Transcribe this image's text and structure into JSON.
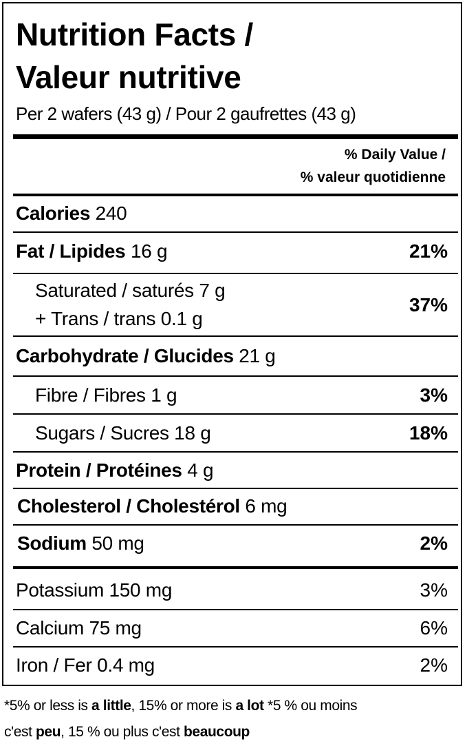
{
  "header": {
    "title_en": "Nutrition Facts /",
    "title_fr": "Valeur nutritive",
    "serving": "Per 2 wafers (43 g) / Pour 2 gaufrettes (43 g)"
  },
  "dv_header": {
    "line1": "% Daily Value /",
    "line2": "% valeur quotidienne"
  },
  "rows": {
    "calories": {
      "name": "Calories",
      "amount": "240"
    },
    "fat": {
      "name": "Fat / Lipides",
      "amount": "16 g",
      "dv": "21%"
    },
    "saturated": {
      "name": "Saturated / saturés 7 g"
    },
    "trans": {
      "name": "+ Trans / trans 0.1 g",
      "dv": "37%"
    },
    "carbohydrate": {
      "name": "Carbohydrate / Glucides",
      "amount": "21 g"
    },
    "fibre": {
      "name": "Fibre / Fibres 1 g",
      "dv": "3%"
    },
    "sugars": {
      "name": "Sugars / Sucres 18 g",
      "dv": "18%"
    },
    "protein": {
      "name": "Protein / Protéines",
      "amount": "4 g"
    },
    "cholesterol": {
      "name": "Cholesterol / Cholestérol",
      "amount": "6 mg"
    },
    "sodium": {
      "name": "Sodium",
      "amount": "50 mg",
      "dv": "2%"
    },
    "potassium": {
      "name": "Potassium 150 mg",
      "dv": "3%"
    },
    "calcium": {
      "name": "Calcium 75 mg",
      "dv": "6%"
    },
    "iron": {
      "name": "Iron / Fer 0.4 mg",
      "dv": "2%"
    }
  },
  "footnote": {
    "p1": "*5% or less is ",
    "b1": "a little",
    "p2": ", 15% or more is ",
    "b2": "a lot",
    "p3": " *5 % ou moins",
    "p4": "c'est ",
    "b3": "peu",
    "p5": ", 15 % ou plus c'est ",
    "b4": "beaucoup"
  }
}
